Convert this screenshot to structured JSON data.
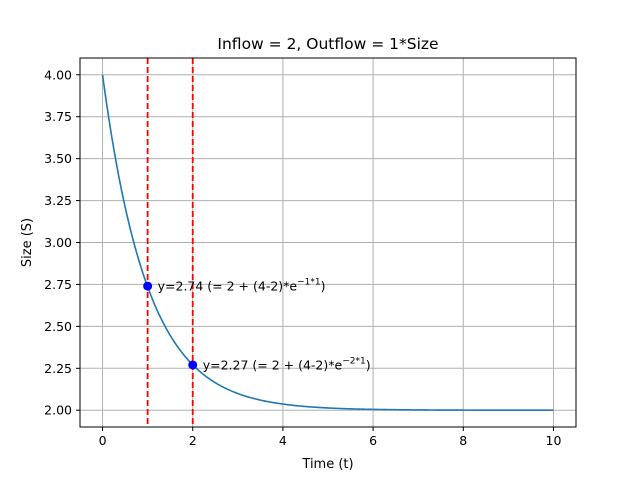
{
  "chart_data": {
    "type": "line",
    "title": "Inflow = 2, Outflow = 1*Size",
    "xlabel": "Time (t)",
    "ylabel": "Size (S)",
    "xlim": [
      -0.5,
      10.5
    ],
    "ylim": [
      1.9,
      4.1
    ],
    "xticks": [
      0,
      2,
      4,
      6,
      8,
      10
    ],
    "xtick_labels": [
      "0",
      "2",
      "4",
      "6",
      "8",
      "10"
    ],
    "yticks": [
      2.0,
      2.25,
      2.5,
      2.75,
      3.0,
      3.25,
      3.5,
      3.75,
      4.0
    ],
    "ytick_labels": [
      "2.00",
      "2.25",
      "2.50",
      "2.75",
      "3.00",
      "3.25",
      "3.50",
      "3.75",
      "4.00"
    ],
    "grid": true,
    "series": [
      {
        "color": "#1f77b4",
        "x": [
          0,
          0.25,
          0.5,
          0.75,
          1,
          1.5,
          2,
          2.5,
          3,
          3.5,
          4,
          5,
          6,
          7,
          8,
          9,
          10
        ],
        "y": [
          4.0,
          3.558,
          3.213,
          2.945,
          2.736,
          2.446,
          2.271,
          2.164,
          2.1,
          2.06,
          2.037,
          2.013,
          2.005,
          2.002,
          2.001,
          2.0,
          2.0
        ]
      }
    ],
    "vlines": [
      {
        "x": 1,
        "color": "#ff0000",
        "style": "dashed"
      },
      {
        "x": 2,
        "color": "#ff0000",
        "style": "dashed"
      }
    ],
    "points": [
      {
        "x": 1,
        "y": 2.74,
        "color": "#0000ff"
      },
      {
        "x": 2,
        "y": 2.27,
        "color": "#0000ff"
      }
    ],
    "annotations": [
      {
        "x": 1,
        "y": 2.74,
        "text": "y=2.74 (= 2 + (4-2)*e",
        "exponent": "−1*1",
        "suffix": ")"
      },
      {
        "x": 2,
        "y": 2.27,
        "text": "y=2.27 (= 2 + (4-2)*e",
        "exponent": "−2*1",
        "suffix": ")"
      }
    ]
  }
}
